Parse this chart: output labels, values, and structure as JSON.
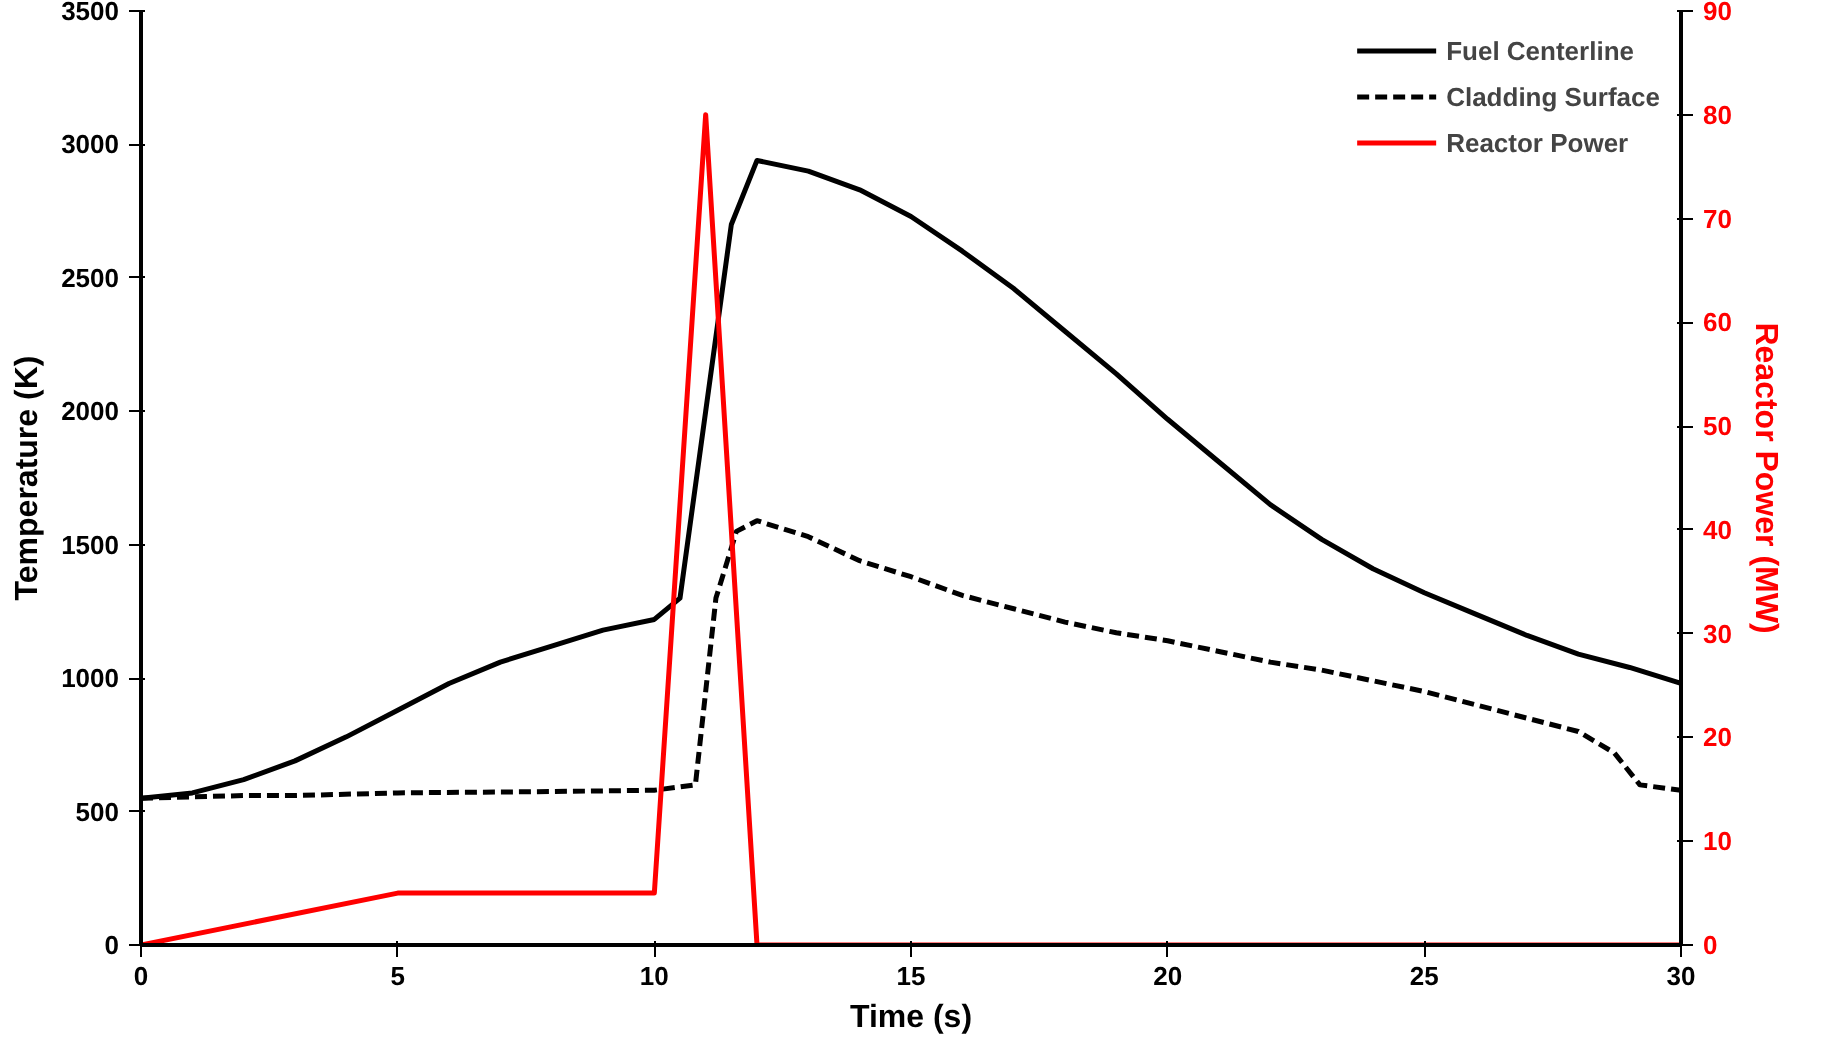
{
  "chart_data": {
    "type": "line",
    "xlabel": "Time (s)",
    "ylabel": "Temperature (K)",
    "y2label": "Reactor Power (MW)",
    "xlim": [
      0,
      30
    ],
    "xticks": [
      0,
      5,
      10,
      15,
      20,
      25,
      30
    ],
    "ylim": [
      0,
      3500
    ],
    "yticks": [
      0,
      500,
      1000,
      1500,
      2000,
      2500,
      3000,
      3500
    ],
    "y2lim": [
      0,
      90
    ],
    "y2ticks": [
      0,
      10,
      20,
      30,
      40,
      50,
      60,
      70,
      80,
      90
    ],
    "legend": "top right",
    "grid": false,
    "series": [
      {
        "name": "Fuel Centerline",
        "color": "#000000",
        "line_style": "solid",
        "x": [
          0,
          1,
          2,
          3,
          4,
          5,
          6,
          7,
          8,
          9,
          10,
          10.5,
          11,
          11.5,
          12,
          13,
          14,
          15,
          16,
          17,
          18,
          19,
          20,
          21,
          22,
          23,
          24,
          25,
          26,
          27,
          28,
          29,
          30
        ],
        "values": [
          550,
          570,
          620,
          690,
          780,
          880,
          980,
          1060,
          1120,
          1180,
          1220,
          1300,
          2000,
          2700,
          2940,
          2900,
          2830,
          2730,
          2600,
          2460,
          2300,
          2140,
          1970,
          1810,
          1650,
          1520,
          1410,
          1320,
          1240,
          1160,
          1090,
          1040,
          980
        ]
      },
      {
        "name": "Cladding Surface",
        "color": "#000000",
        "line_style": "dashed",
        "x": [
          0,
          2,
          3,
          5,
          8,
          10,
          10.8,
          11.2,
          11.6,
          12,
          13,
          14,
          15,
          16,
          17,
          18,
          19,
          20,
          21,
          22,
          23,
          24,
          25,
          26,
          27,
          28,
          28.7,
          29.2,
          30
        ],
        "values": [
          550,
          560,
          560,
          570,
          575,
          580,
          600,
          1300,
          1550,
          1590,
          1530,
          1440,
          1380,
          1310,
          1260,
          1210,
          1170,
          1140,
          1100,
          1060,
          1030,
          990,
          950,
          900,
          850,
          800,
          720,
          600,
          580
        ]
      },
      {
        "name": "Reactor Power",
        "color": "#ff0000",
        "line_style": "solid",
        "axis": "y2",
        "x": [
          0,
          5,
          10,
          11,
          12,
          30
        ],
        "values": [
          0,
          5,
          5,
          80,
          0,
          0
        ]
      }
    ]
  }
}
